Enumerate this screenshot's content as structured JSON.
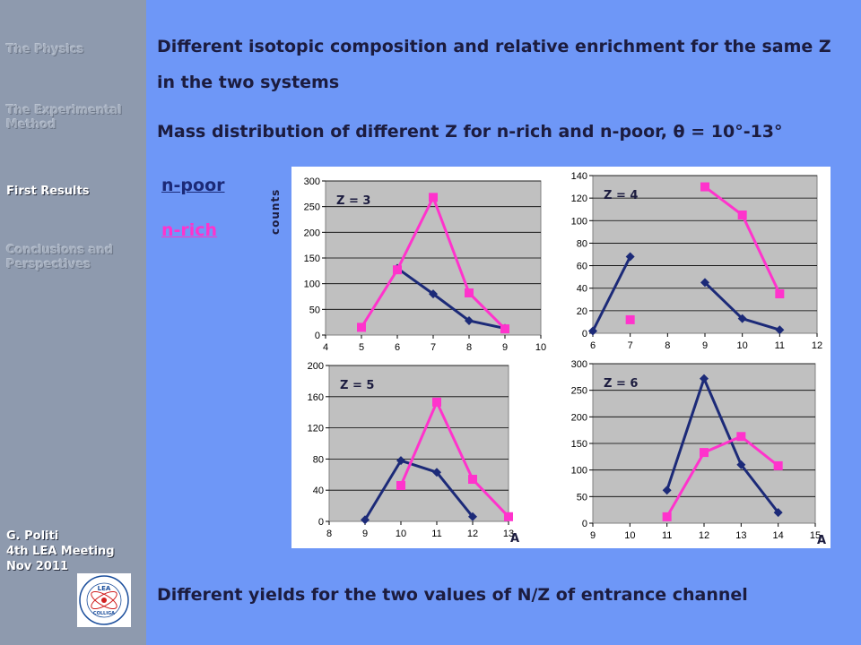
{
  "sidebar": {
    "items": [
      {
        "label": "The Physics",
        "active": false
      },
      {
        "label": "The Experimental Method",
        "active": false
      },
      {
        "label": "First Results",
        "active": true
      },
      {
        "label": "Conclusions and Perspectives",
        "active": false
      }
    ],
    "author": {
      "name": "G. Politi",
      "meeting": "4th LEA Meeting",
      "date": "Nov 2011"
    },
    "logo": {
      "top_text": "LEA",
      "bottom_text": "COLLIGA"
    }
  },
  "headings": {
    "line1": "Different isotopic composition and relative enrichment for the same Z in the two systems",
    "line2": "Mass distribution of different Z for n-rich and n-poor,  θ = 10°-13°",
    "line3": "Different yields for the two values of N/Z of entrance channel"
  },
  "legend": {
    "poor": "n-poor",
    "rich": "n-rich"
  },
  "colors": {
    "poor": "#1c2a78",
    "rich": "#ff33cc",
    "background": "#6e97f7",
    "sidebar": "#8e9aae",
    "plot_bg": "#c0c0c0"
  },
  "chart_data": [
    {
      "type": "line",
      "title": "Z = 3",
      "ylabel": "counts",
      "xlabel": "",
      "xlim": [
        4,
        10
      ],
      "ylim": [
        0,
        300
      ],
      "xticks": [
        4,
        5,
        6,
        7,
        8,
        9,
        10
      ],
      "yticks": [
        0,
        50,
        100,
        150,
        200,
        250,
        300
      ],
      "series": [
        {
          "name": "n-poor",
          "x": [
            6,
            7,
            8,
            9
          ],
          "y": [
            130,
            80,
            28,
            13
          ]
        },
        {
          "name": "n-rich",
          "x": [
            5,
            6,
            7,
            8,
            9
          ],
          "y": [
            15,
            127,
            268,
            82,
            12
          ]
        }
      ]
    },
    {
      "type": "line",
      "title": "Z = 4",
      "ylabel": "",
      "xlabel": "",
      "xlim": [
        6,
        12
      ],
      "ylim": [
        0,
        140
      ],
      "xticks": [
        6,
        7,
        8,
        9,
        10,
        11,
        12
      ],
      "yticks": [
        0,
        20,
        40,
        60,
        80,
        100,
        120,
        140
      ],
      "series": [
        {
          "name": "n-poor",
          "x": [
            6,
            7,
            null,
            9,
            10,
            11
          ],
          "y": [
            2,
            68,
            null,
            45,
            13,
            3
          ]
        },
        {
          "name": "n-rich",
          "x": [
            7,
            null,
            9,
            10,
            11
          ],
          "y": [
            12,
            null,
            130,
            105,
            35
          ]
        }
      ]
    },
    {
      "type": "line",
      "title": "Z = 5",
      "ylabel": "",
      "xlabel": "A",
      "xlim": [
        8,
        13
      ],
      "ylim": [
        0,
        200
      ],
      "xticks": [
        8,
        9,
        10,
        11,
        12,
        13
      ],
      "yticks": [
        0,
        40,
        80,
        120,
        160,
        200
      ],
      "series": [
        {
          "name": "n-poor",
          "x": [
            9,
            10,
            11,
            12
          ],
          "y": [
            2,
            78,
            63,
            6
          ]
        },
        {
          "name": "n-rich",
          "x": [
            10,
            11,
            12,
            13
          ],
          "y": [
            46,
            153,
            54,
            6
          ]
        }
      ]
    },
    {
      "type": "line",
      "title": "Z = 6",
      "ylabel": "",
      "xlabel": "A",
      "xlim": [
        9,
        15
      ],
      "ylim": [
        0,
        300
      ],
      "xticks": [
        9,
        10,
        11,
        12,
        13,
        14,
        15
      ],
      "yticks": [
        0,
        50,
        100,
        150,
        200,
        250,
        300
      ],
      "series": [
        {
          "name": "n-poor",
          "x": [
            11,
            12,
            13,
            14
          ],
          "y": [
            62,
            272,
            110,
            20
          ]
        },
        {
          "name": "n-rich",
          "x": [
            11,
            12,
            13,
            14
          ],
          "y": [
            12,
            133,
            163,
            108
          ]
        }
      ]
    }
  ]
}
